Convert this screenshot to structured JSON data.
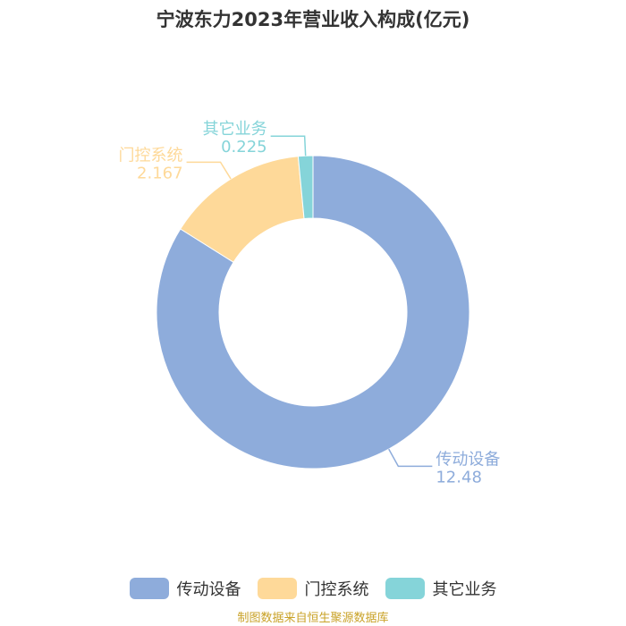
{
  "title": "宁波东力2023年营业收入构成(亿元)",
  "source": "制图数据来自恒生聚源数据库",
  "chart_data": {
    "type": "pie",
    "donut": true,
    "title": "宁波东力2023年营业收入构成(亿元)",
    "categories": [
      "传动设备",
      "门控系统",
      "其它业务"
    ],
    "values": [
      12.48,
      2.167,
      0.225
    ],
    "value_labels": [
      "12.48",
      "2.167",
      "0.225"
    ],
    "colors": [
      "#8eacdb",
      "#fed999",
      "#85d4d9"
    ],
    "legend_position": "bottom"
  }
}
